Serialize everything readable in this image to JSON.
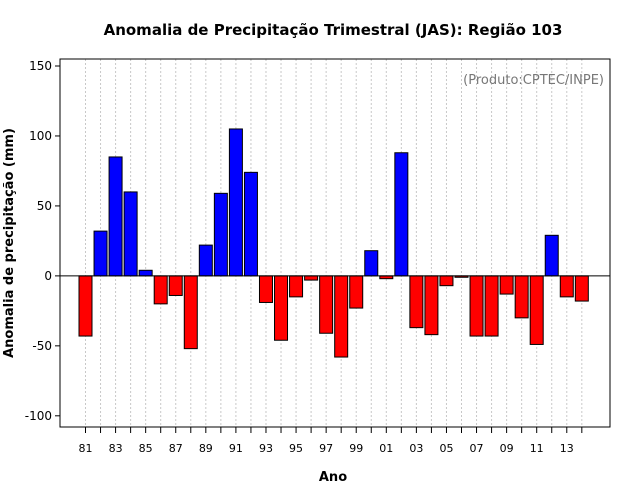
{
  "chart_data": {
    "type": "bar",
    "title": "Anomalia de Precipitação Trimestral (JAS): Região 103",
    "xlabel": "Ano",
    "ylabel": "Anomalia de precipitação (mm)",
    "source_note": "(Produto:CPTEC/INPE)",
    "ylim": [
      -108,
      155
    ],
    "yticks": [
      -100,
      -50,
      0,
      50,
      100,
      150
    ],
    "categories": [
      "81",
      "82",
      "83",
      "84",
      "85",
      "86",
      "87",
      "88",
      "89",
      "90",
      "91",
      "92",
      "93",
      "94",
      "95",
      "96",
      "97",
      "98",
      "99",
      "00",
      "01",
      "02",
      "03",
      "04",
      "05",
      "06",
      "07",
      "08",
      "09",
      "10",
      "11",
      "12",
      "13",
      "14"
    ],
    "xtick_labels": [
      "81",
      "83",
      "85",
      "87",
      "89",
      "91",
      "93",
      "95",
      "97",
      "99",
      "01",
      "03",
      "05",
      "07",
      "09",
      "11",
      "13"
    ],
    "values": [
      -43,
      32,
      85,
      60,
      4,
      -20,
      -14,
      -52,
      22,
      59,
      105,
      74,
      -19,
      -46,
      -15,
      -3,
      -41,
      -58,
      -23,
      18,
      -2,
      88,
      -37,
      -42,
      -7,
      -1,
      -43,
      -43,
      -13,
      -30,
      -49,
      29,
      -15,
      -18
    ],
    "colors": {
      "positive": "#0000ff",
      "negative": "#ff0000",
      "grid": "#c8c8c8",
      "zero_line": "#000000"
    },
    "grid": true
  }
}
